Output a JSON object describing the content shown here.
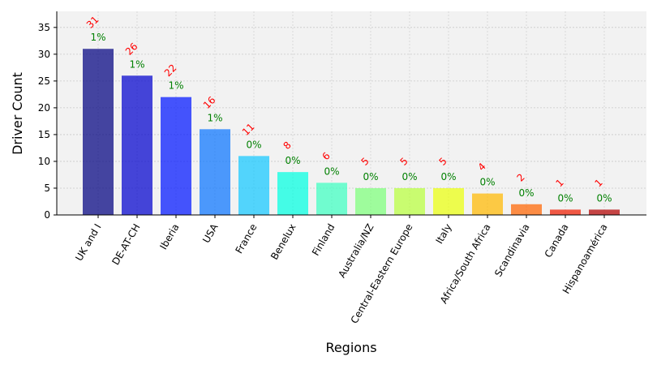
{
  "chart_data": {
    "type": "bar",
    "title": "",
    "xlabel": "Regions",
    "ylabel": "Driver Count",
    "ylim": [
      0,
      38
    ],
    "yticks": [
      0,
      5,
      10,
      15,
      20,
      25,
      30,
      35
    ],
    "grid": true,
    "categories": [
      "UK and I",
      "DE-AT-CH",
      "Iberia",
      "USA",
      "France",
      "Benelux",
      "Finland",
      "Australia/NZ",
      "Central-Eastern Europe",
      "Italy",
      "Africa/South Africa",
      "Scandinavia",
      "Canada",
      "Hispanoamérica"
    ],
    "values": [
      31,
      26,
      22,
      16,
      11,
      8,
      6,
      5,
      5,
      5,
      4,
      2,
      1,
      1
    ],
    "count_labels": [
      "31",
      "26",
      "22",
      "16",
      "11",
      "8",
      "6",
      "5",
      "5",
      "5",
      "4",
      "2",
      "1",
      "1"
    ],
    "percent_labels": [
      "1%",
      "1%",
      "1%",
      "1%",
      "0%",
      "0%",
      "0%",
      "0%",
      "0%",
      "0%",
      "0%",
      "0%",
      "0%",
      "0%"
    ],
    "bar_colors": [
      "#000080",
      "#0000cd",
      "#0015ff",
      "#0a75ff",
      "#13c8ff",
      "#00ffe0",
      "#3dffc0",
      "#7dff7a",
      "#b8ff3d",
      "#eaff0d",
      "#ffb900",
      "#ff6400",
      "#ee1c00",
      "#b30000"
    ],
    "count_label_color": "#ff0000",
    "percent_label_color": "#008000",
    "plot_background": "#f2f2f2"
  }
}
